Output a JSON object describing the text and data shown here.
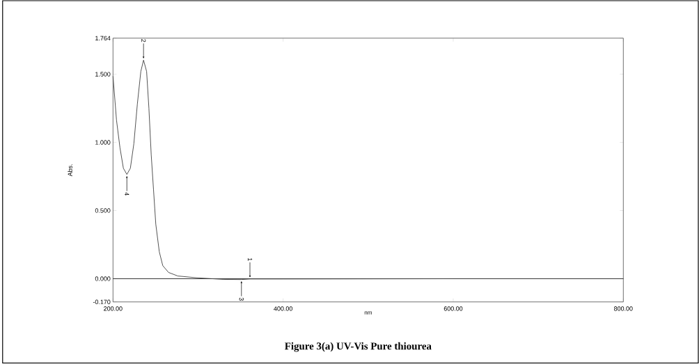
{
  "chart_data": {
    "type": "line",
    "title": "Figure 3(a)  UV-Vis Pure thiourea",
    "xlabel": "nm",
    "ylabel": "Abs.",
    "x": [
      200,
      204.1,
      208.2,
      212.2,
      216.3,
      220.4,
      224.5,
      228.6,
      232.7,
      235.9,
      239.5,
      242.2,
      244.9,
      247.6,
      250.3,
      254.4,
      258.5,
      265.3,
      276.2,
      298,
      330,
      351,
      361,
      400,
      500,
      600,
      800
    ],
    "series": [
      {
        "color": "#404040",
        "values": [
          1.485,
          1.163,
          0.96,
          0.81,
          0.765,
          0.81,
          0.99,
          1.28,
          1.52,
          1.603,
          1.52,
          1.25,
          0.91,
          0.655,
          0.4,
          0.198,
          0.096,
          0.046,
          0.02,
          0.007,
          -0.005,
          -0.006,
          -0.002,
          -0.002,
          -0.001,
          0,
          0
        ]
      }
    ],
    "xlim": [
      200,
      800
    ],
    "ylim": [
      -0.17,
      1.764
    ],
    "xticks": [
      {
        "value": 200,
        "label": "200.00"
      },
      {
        "value": 400,
        "label": "400.00"
      },
      {
        "value": 600,
        "label": "600.00"
      },
      {
        "value": 800,
        "label": "800.00"
      }
    ],
    "yticks": [
      {
        "value": -0.17,
        "label": "-0.170"
      },
      {
        "value": 0,
        "label": "0.000"
      },
      {
        "value": 0.5,
        "label": "0.500"
      },
      {
        "value": 1,
        "label": "1.000"
      },
      {
        "value": 1.5,
        "label": "1.500"
      },
      {
        "value": 1.764,
        "label": "1.764"
      }
    ],
    "ref_lines": [
      {
        "axis": "y",
        "value": 0,
        "color": "#000000"
      }
    ],
    "annotations": [
      {
        "text": "1",
        "x": 361,
        "y": -0.002
      },
      {
        "text": "2",
        "x": 235.9,
        "y": 1.603
      },
      {
        "text": "3",
        "x": 351,
        "y": -0.006
      },
      {
        "text": "4",
        "x": 216.3,
        "y": 0.765
      }
    ]
  }
}
